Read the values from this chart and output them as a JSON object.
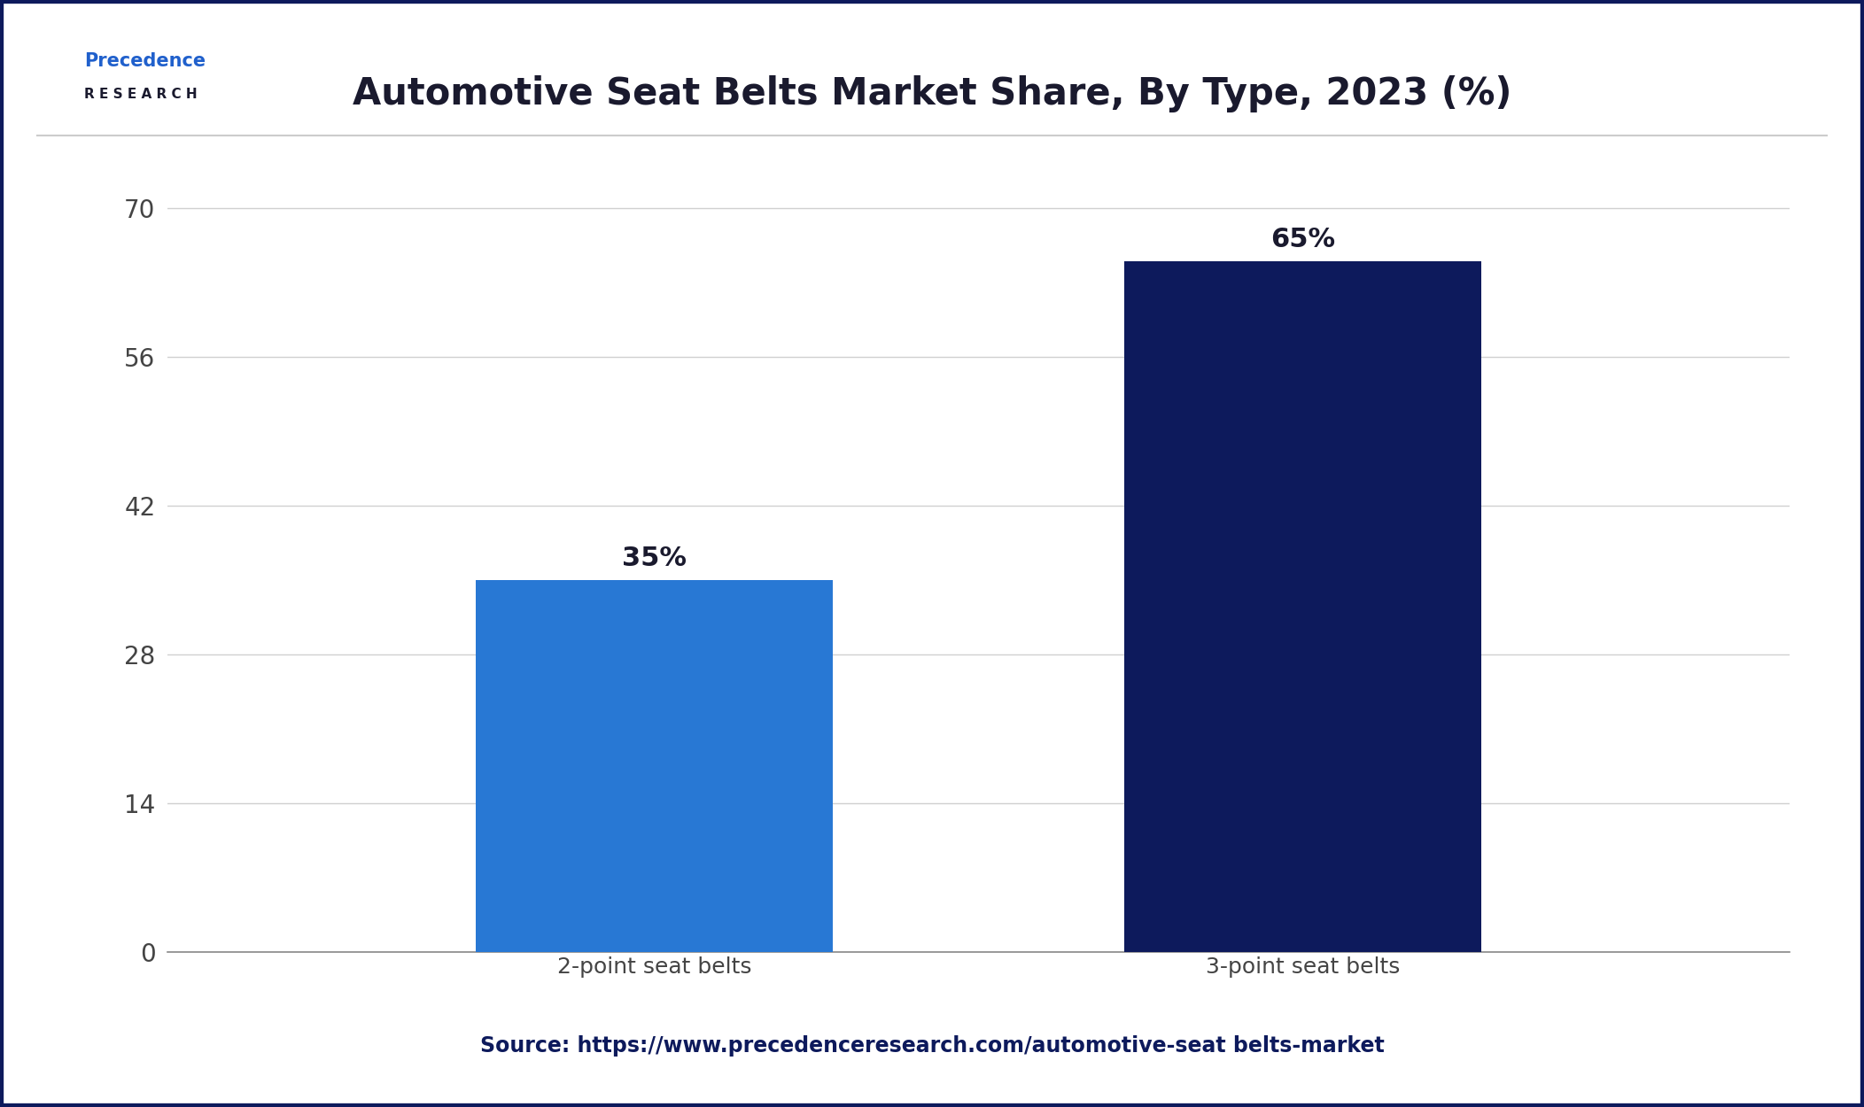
{
  "title": "Automotive Seat Belts Market Share, By Type, 2023 (%)",
  "categories": [
    "2-point seat belts",
    "3-point seat belts"
  ],
  "values": [
    35,
    65
  ],
  "bar_colors": [
    "#2878d4",
    "#0d1a5c"
  ],
  "bar_labels": [
    "35%",
    "65%"
  ],
  "yticks": [
    0,
    14,
    28,
    42,
    56,
    70
  ],
  "ylim": [
    0,
    75
  ],
  "background_color": "#ffffff",
  "plot_bg_color": "#ffffff",
  "grid_color": "#d0d0d0",
  "title_color": "#1a1a2e",
  "tick_label_color": "#444444",
  "bar_label_color": "#1a1a2e",
  "source_text": "Source: https://www.precedenceresearch.com/automotive-seat belts-market",
  "source_color": "#0d1a5c",
  "border_color": "#0d1a5c",
  "title_fontsize": 30,
  "bar_label_fontsize": 22,
  "tick_fontsize": 20,
  "source_fontsize": 17,
  "xlabel_fontsize": 18,
  "bar_width": 0.22,
  "x_positions": [
    0.3,
    0.7
  ]
}
